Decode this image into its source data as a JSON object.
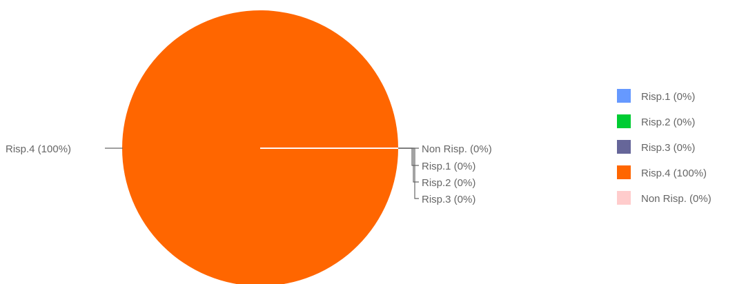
{
  "chart_data": {
    "type": "pie",
    "categories": [
      "Risp.1",
      "Risp.2",
      "Risp.3",
      "Risp.4",
      "Non Risp."
    ],
    "values": [
      0,
      0,
      0,
      100,
      0
    ],
    "unit": "%",
    "colors": [
      "#6699ff",
      "#00cc33",
      "#666699",
      "#ff6600",
      "#ffcccc"
    ],
    "slice_labels": [
      "Risp.1 (0%)",
      "Risp.2 (0%)",
      "Risp.3 (0%)",
      "Risp.4 (100%)",
      "Non Risp. (0%)"
    ],
    "legend": {
      "placement": "right",
      "entries": [
        "Risp.1 (0%)",
        "Risp.2 (0%)",
        "Risp.3 (0%)",
        "Risp.4 (100%)",
        "Non Risp. (0%)"
      ]
    },
    "title": ""
  }
}
